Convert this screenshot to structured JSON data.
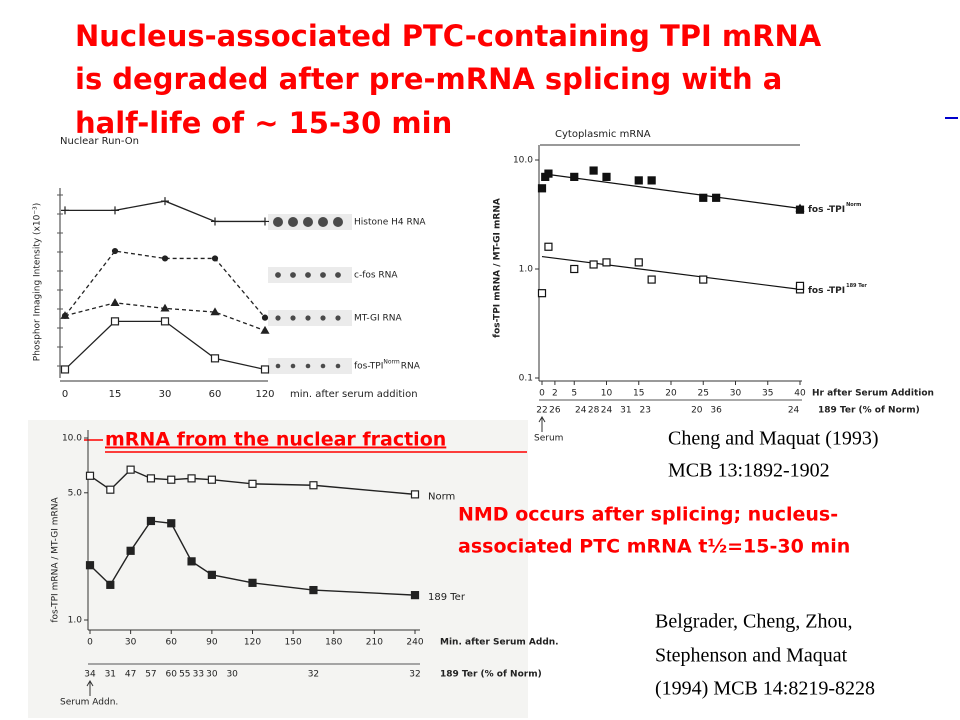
{
  "title_lines": [
    "Nucleus-associated PTC-containing TPI mRNA",
    "is degraded after pre-mRNA splicing with a",
    "half-life of ~ 15-30 min"
  ],
  "captions": {
    "nuclear_fraction": "mRNA from the nuclear fraction",
    "nmd_lines": [
      "NMD occurs after splicing; nucleus-",
      "associated PTC mRNA t½=15-30 min"
    ],
    "ref1_lines": [
      "Cheng and Maquat (1993)",
      "MCB 13:1892-1902"
    ],
    "ref2_lines": [
      "Belgrader, Cheng, Zhou,",
      "Stephenson and Maquat",
      "(1994) MCB 14:8219-8228"
    ]
  },
  "chart_data": [
    {
      "type": "line",
      "title": "Nuclear Run-On",
      "ylabel": "Phosphor Imaging Intensity (x10⁻³)",
      "xlabel": "min. after serum addition",
      "categories": [
        0,
        15,
        30,
        60,
        120
      ],
      "ylim": [
        0,
        10
      ],
      "series": [
        {
          "name": "Histone H4 RNA",
          "color": "#222222",
          "style": "solid",
          "marker": "plus",
          "values": [
            8.9,
            8.9,
            9.4,
            8.3,
            8.3
          ]
        },
        {
          "name": "c-fos RNA",
          "color": "#222222",
          "style": "dashed",
          "marker": "dot",
          "values": [
            3.2,
            6.7,
            6.3,
            6.3,
            3.1
          ]
        },
        {
          "name": "MT-GI RNA",
          "color": "#222222",
          "style": "dashed",
          "marker": "triangle",
          "values": [
            3.2,
            3.9,
            3.6,
            3.4,
            2.4
          ]
        },
        {
          "name": "fos-TPI",
          "sup": "Norm",
          "suffix": "RNA",
          "color": "#222222",
          "style": "solid",
          "marker": "open",
          "values": [
            0.3,
            2.9,
            2.9,
            0.9,
            0.3
          ]
        }
      ]
    },
    {
      "type": "scatter",
      "title": "Cytoplasmic mRNA",
      "ylabel": "fos-TPI mRNA / MT-GI mRNA",
      "xlabel": "Hr after Serum Addition",
      "log_y": true,
      "xlim": [
        0,
        40
      ],
      "ylim": [
        0.1,
        10
      ],
      "xticks": [
        0,
        2,
        5,
        10,
        15,
        20,
        25,
        30,
        35,
        40
      ],
      "yticks": [
        {
          "value": 10,
          "label": "10.0"
        },
        {
          "value": 1,
          "label": "1.0"
        },
        0.1
      ],
      "series": [
        {
          "name": "fos -TPI",
          "sup": "Norm",
          "color": "#111111",
          "marker": "filled",
          "x": [
            0,
            0.5,
            1,
            5,
            8,
            10,
            15,
            17,
            25,
            27,
            40
          ],
          "values": [
            5.5,
            7,
            7.5,
            7,
            8,
            7,
            6.5,
            6.5,
            4.5,
            4.5,
            3.5
          ],
          "trend_x": [
            0,
            40
          ],
          "trend": [
            7.5,
            3.6
          ]
        },
        {
          "name": "fos -TPI",
          "sup": "189 Ter",
          "color": "#111111",
          "marker": "open",
          "x": [
            0,
            1,
            5,
            8,
            10,
            15,
            17,
            25,
            40
          ],
          "values": [
            0.6,
            1.6,
            1.0,
            1.1,
            1.15,
            1.15,
            0.8,
            0.8,
            0.7
          ],
          "trend_x": [
            0,
            40
          ],
          "trend": [
            1.3,
            0.65
          ]
        }
      ],
      "ter_row": {
        "label": "189 Ter (% of Norm)",
        "x": [
          0,
          2,
          6,
          8,
          10,
          13,
          16,
          24,
          27,
          39
        ],
        "values": [
          22,
          26,
          24,
          28,
          24,
          31,
          23,
          20,
          36,
          24
        ]
      },
      "serum_label": "Serum"
    },
    {
      "type": "line",
      "ylabel": "fos-TPI mRNA / MT-GI mRNA",
      "xlabel": "Min. after Serum Addn.",
      "log_y": true,
      "xlim": [
        0,
        240
      ],
      "ylim": [
        1,
        10
      ],
      "xticks": [
        0,
        30,
        60,
        90,
        120,
        150,
        180,
        210,
        240
      ],
      "yticks": [
        {
          "value": 10,
          "label": "10.0"
        },
        {
          "value": 5,
          "label": "5.0"
        },
        {
          "value": 1,
          "label": "1.0"
        }
      ],
      "series": [
        {
          "name": "Norm",
          "color": "#222222",
          "marker": "open",
          "x": [
            0,
            15,
            30,
            45,
            60,
            75,
            90,
            120,
            165,
            240
          ],
          "values": [
            6.2,
            5.2,
            6.7,
            6.0,
            5.9,
            6.0,
            5.9,
            5.6,
            5.5,
            4.9
          ]
        },
        {
          "name": "189 Ter",
          "color": "#222222",
          "marker": "filled",
          "x": [
            0,
            15,
            30,
            45,
            60,
            75,
            90,
            120,
            165,
            240
          ],
          "values": [
            2.0,
            1.56,
            2.4,
            3.5,
            3.4,
            2.1,
            1.77,
            1.6,
            1.46,
            1.37
          ]
        }
      ],
      "ter_row": {
        "label": "189 Ter (% of Norm)",
        "x": [
          0,
          15,
          30,
          45,
          60,
          70,
          80,
          90,
          105,
          165,
          240
        ],
        "values": [
          34,
          31,
          47,
          57,
          60,
          55,
          33,
          30,
          30,
          32,
          32
        ]
      },
      "serum_label": "Serum Addn."
    }
  ]
}
